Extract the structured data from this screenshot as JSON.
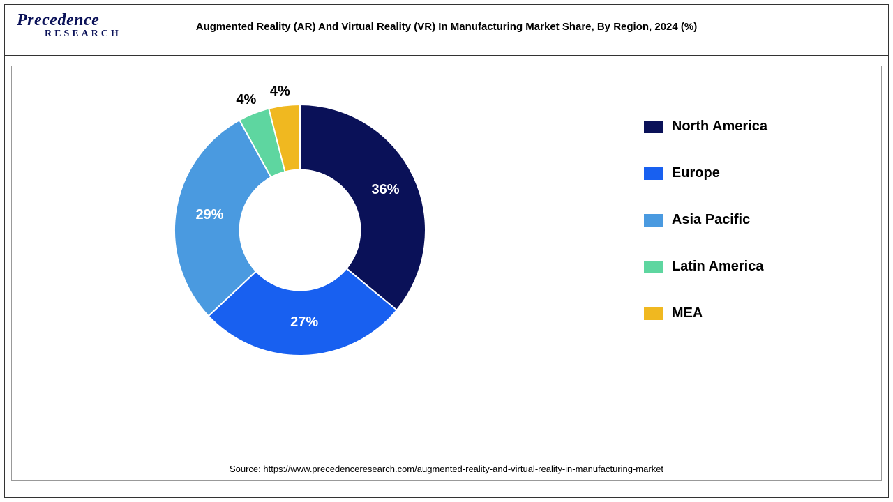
{
  "logo": {
    "main": "Precedence",
    "sub": "RESEARCH"
  },
  "title": "Augmented Reality (AR) And Virtual Reality (VR) In Manufacturing Market Share, By Region, 2024 (%)",
  "chart": {
    "type": "donut",
    "inner_radius_ratio": 0.48,
    "outer_radius": 180,
    "segments": [
      {
        "label": "North America",
        "value": 36,
        "color": "#0a1158",
        "display": "36%"
      },
      {
        "label": "Europe",
        "value": 27,
        "color": "#1860f0",
        "display": "27%"
      },
      {
        "label": "Asia Pacific",
        "value": 29,
        "color": "#4a9ae0",
        "display": "29%"
      },
      {
        "label": "Latin America",
        "value": 4,
        "color": "#5ed6a0",
        "display": "4%"
      },
      {
        "label": "MEA",
        "value": 4,
        "color": "#f0b820",
        "display": "4%"
      }
    ],
    "background_color": "#ffffff",
    "label_fontsize": 20,
    "legend_fontsize": 20
  },
  "source": "Source: https://www.precedenceresearch.com/augmented-reality-and-virtual-reality-in-manufacturing-market"
}
